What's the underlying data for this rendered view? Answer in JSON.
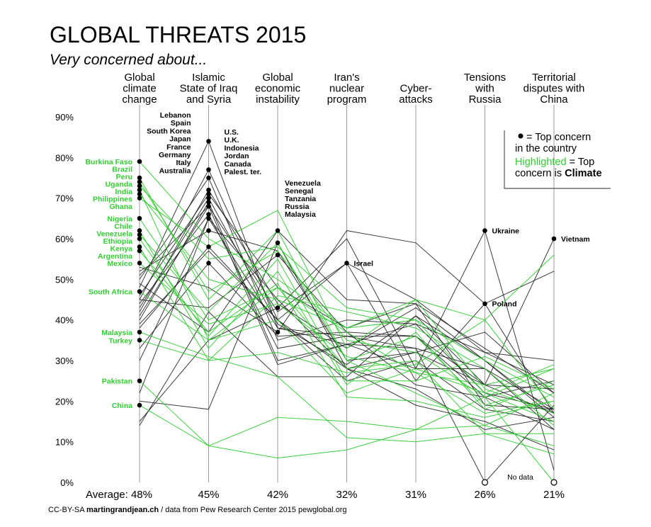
{
  "chart_data": {
    "type": "line",
    "title": "GLOBAL THREATS 2015",
    "subtitle": "Very concerned about...",
    "categories": [
      "Global climate change",
      "Islamic State of Iraq and Syria",
      "Global economic instability",
      "Iran's nuclear program",
      "Cyber-attacks",
      "Tensions with Russia",
      "Territorial disputes with China"
    ],
    "category_label_lines": [
      [
        "Global",
        "climate",
        "change"
      ],
      [
        "Islamic",
        "State of Iraq",
        "and Syria"
      ],
      [
        "Global",
        "economic",
        "instability"
      ],
      [
        "Iran's",
        "nuclear",
        "program"
      ],
      [
        "Cyber-",
        "attacks"
      ],
      [
        "Tensions",
        "with",
        "Russia"
      ],
      [
        "Territorial",
        "disputes with",
        "China"
      ]
    ],
    "average_prefix": "Average:",
    "averages": [
      "48%",
      "45%",
      "42%",
      "32%",
      "31%",
      "26%",
      "21%"
    ],
    "ylim": [
      0,
      90
    ],
    "yticks": [
      "0%",
      "10%",
      "20%",
      "30%",
      "40%",
      "50%",
      "60%",
      "70%",
      "80%",
      "90%"
    ],
    "grid": false,
    "legend": {
      "placement": "top-right",
      "dot_text": "= Top concern",
      "dot_text2": "in the country",
      "highlight_word": "Highlighted",
      "highlight_rest": "= Top",
      "line3_plain": "concern is",
      "line3_bold": "Climate"
    },
    "annotations": {
      "no_data": "No data"
    },
    "colors": {
      "highlight": "#33cc33",
      "line": "#1a1a1a",
      "axis": "#999999"
    },
    "country_groups": [
      {
        "category_index": 0,
        "side": "left",
        "highlight": true,
        "names": [
          "Burkina Faso",
          "Brazil",
          "Peru",
          "Uganda",
          "India",
          "Philippines",
          "Ghana"
        ],
        "values": [
          79,
          75,
          74,
          73,
          72,
          71,
          70
        ]
      },
      {
        "category_index": 0,
        "side": "left",
        "highlight": true,
        "names": [
          "Nigeria",
          "Chile",
          "Venezuela",
          "Ethiopia",
          "Kenya",
          "Argentina",
          "Mexico"
        ],
        "values": [
          65,
          62,
          61,
          60,
          58,
          57,
          54
        ]
      },
      {
        "category_index": 0,
        "side": "left",
        "highlight": true,
        "names": [
          "South Africa"
        ],
        "values": [
          47
        ]
      },
      {
        "category_index": 0,
        "side": "left",
        "highlight": true,
        "names": [
          "Malaysia",
          "Turkey"
        ],
        "values": [
          37,
          35
        ]
      },
      {
        "category_index": 0,
        "side": "left",
        "highlight": true,
        "names": [
          "Pakistan"
        ],
        "values": [
          25
        ]
      },
      {
        "category_index": 0,
        "side": "left",
        "highlight": true,
        "names": [
          "China"
        ],
        "values": [
          19
        ]
      },
      {
        "category_index": 1,
        "side": "left",
        "highlight": false,
        "names": [
          "Lebanon",
          "Spain",
          "South Korea",
          "Japan",
          "France",
          "Germany",
          "Italy",
          "Australia"
        ],
        "values": [
          84,
          77,
          75,
          72,
          71,
          70,
          69,
          68
        ]
      },
      {
        "category_index": 1,
        "side": "right",
        "highlight": false,
        "names": [
          "U.S.",
          "U.K.",
          "Indonesia",
          "Jordan",
          "Canada",
          "Palest. ter."
        ],
        "values": [
          68,
          66,
          65,
          62,
          58,
          54
        ]
      },
      {
        "category_index": 2,
        "side": "right",
        "highlight": false,
        "names": [
          "Venezuela",
          "Senegal",
          "Tanzania",
          "Russia",
          "Malaysia"
        ],
        "values": [
          62,
          59,
          56,
          43,
          37
        ]
      },
      {
        "category_index": 3,
        "side": "right",
        "highlight": false,
        "names": [
          "Israel"
        ],
        "values": [
          54
        ]
      },
      {
        "category_index": 5,
        "side": "right",
        "highlight": false,
        "names": [
          "Ukraine"
        ],
        "values": [
          62
        ]
      },
      {
        "category_index": 5,
        "side": "right",
        "highlight": false,
        "names": [
          "Poland"
        ],
        "values": [
          44
        ]
      },
      {
        "category_index": 6,
        "side": "right",
        "highlight": false,
        "names": [
          "Vietnam"
        ],
        "values": [
          60
        ]
      }
    ],
    "no_data_points": [
      {
        "category_index": 5,
        "value": 0
      },
      {
        "category_index": 6,
        "value": 0
      }
    ],
    "series": [
      {
        "highlight": true,
        "values": [
          79,
          60,
          50,
          38,
          40,
          30,
          21
        ]
      },
      {
        "highlight": true,
        "values": [
          75,
          45,
          62,
          30,
          36,
          19,
          24
        ]
      },
      {
        "highlight": true,
        "values": [
          74,
          47,
          57,
          35,
          32,
          21,
          28
        ]
      },
      {
        "highlight": true,
        "values": [
          73,
          55,
          58,
          43,
          40,
          22,
          15
        ]
      },
      {
        "highlight": true,
        "values": [
          72,
          35,
          40,
          22,
          28,
          22,
          29
        ]
      },
      {
        "highlight": true,
        "values": [
          71,
          50,
          45,
          38,
          45,
          40,
          56
        ]
      },
      {
        "highlight": true,
        "values": [
          70,
          58,
          67,
          33,
          45,
          23,
          17
        ]
      },
      {
        "highlight": true,
        "values": [
          65,
          40,
          48,
          28,
          30,
          12,
          12
        ]
      },
      {
        "highlight": true,
        "values": [
          62,
          33,
          52,
          24,
          37,
          18,
          25
        ]
      },
      {
        "highlight": true,
        "values": [
          61,
          42,
          59,
          30,
          22,
          14,
          22
        ]
      },
      {
        "highlight": true,
        "values": [
          60,
          36,
          55,
          25,
          25,
          31,
          23
        ]
      },
      {
        "highlight": true,
        "values": [
          58,
          30,
          46,
          42,
          38,
          28,
          14
        ]
      },
      {
        "highlight": true,
        "values": [
          57,
          37,
          49,
          21,
          20,
          16,
          20
        ]
      },
      {
        "highlight": true,
        "values": [
          54,
          39,
          44,
          31,
          27,
          24,
          28
        ]
      },
      {
        "highlight": true,
        "values": [
          47,
          35,
          48,
          37,
          27,
          17,
          20
        ]
      },
      {
        "highlight": true,
        "values": [
          37,
          31,
          26,
          11,
          10,
          12,
          7
        ]
      },
      {
        "highlight": true,
        "values": [
          35,
          30,
          32,
          27,
          29,
          40,
          18
        ]
      },
      {
        "highlight": true,
        "values": [
          25,
          9,
          16,
          15,
          13,
          14,
          9
        ]
      },
      {
        "highlight": true,
        "values": [
          19,
          9,
          6,
          8,
          13,
          21,
          0
        ]
      },
      {
        "highlight": false,
        "values": [
          48,
          84,
          38,
          34,
          39,
          32,
          30
        ]
      },
      {
        "highlight": false,
        "values": [
          45,
          77,
          40,
          28,
          32,
          37,
          22
        ]
      },
      {
        "highlight": false,
        "values": [
          50,
          75,
          35,
          40,
          39,
          22,
          18
        ]
      },
      {
        "highlight": false,
        "values": [
          42,
          72,
          44,
          33,
          43,
          30,
          16
        ]
      },
      {
        "highlight": false,
        "values": [
          46,
          71,
          48,
          38,
          44,
          33,
          22
        ]
      },
      {
        "highlight": false,
        "values": [
          43,
          70,
          39,
          29,
          41,
          30,
          17
        ]
      },
      {
        "highlight": false,
        "values": [
          40,
          69,
          30,
          34,
          33,
          28,
          18
        ]
      },
      {
        "highlight": false,
        "values": [
          41,
          68,
          29,
          34,
          28,
          28,
          13
        ]
      },
      {
        "highlight": false,
        "values": [
          51,
          68,
          42,
          54,
          45,
          32,
          24
        ]
      },
      {
        "highlight": false,
        "values": [
          44,
          66,
          33,
          36,
          36,
          24,
          17
        ]
      },
      {
        "highlight": false,
        "values": [
          22,
          65,
          45,
          28,
          19,
          15,
          8
        ]
      },
      {
        "highlight": false,
        "values": [
          52,
          62,
          57,
          30,
          32,
          24,
          23
        ]
      },
      {
        "highlight": false,
        "values": [
          38,
          58,
          40,
          25,
          30,
          18,
          15
        ]
      },
      {
        "highlight": false,
        "values": [
          33,
          54,
          36,
          37,
          24,
          21,
          13
        ]
      },
      {
        "highlight": false,
        "values": [
          49,
          37,
          62,
          45,
          44,
          19,
          18
        ]
      },
      {
        "highlight": false,
        "values": [
          20,
          18,
          59,
          28,
          23,
          13,
          16
        ]
      },
      {
        "highlight": false,
        "values": [
          45,
          43,
          56,
          37,
          36,
          21,
          25
        ]
      },
      {
        "highlight": false,
        "values": [
          15,
          35,
          43,
          60,
          28,
          62,
          3
        ]
      },
      {
        "highlight": false,
        "values": [
          53,
          48,
          37,
          62,
          59,
          44,
          52
        ]
      },
      {
        "highlight": false,
        "values": [
          39,
          57,
          40,
          54,
          25,
          44,
          17
        ]
      },
      {
        "highlight": false,
        "values": [
          14,
          42,
          26,
          26,
          41,
          24,
          60
        ]
      },
      {
        "highlight": false,
        "values": [
          30,
          65,
          38,
          36,
          33,
          0,
          19
        ]
      }
    ]
  },
  "footer": {
    "license": "CC-BY-SA",
    "author": "martingrandjean.ch",
    "source": "/ data from Pew Research Center 2015 pewglobal.org"
  }
}
